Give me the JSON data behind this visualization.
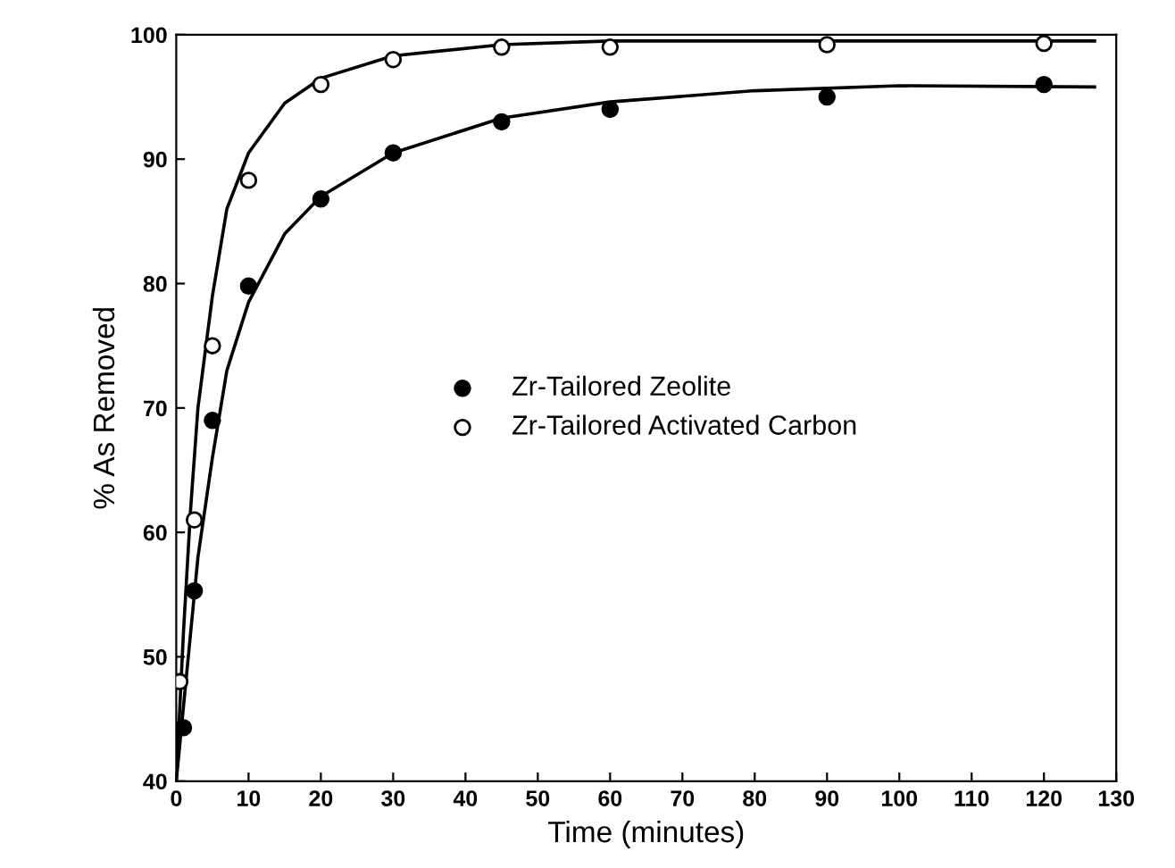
{
  "chart_data": {
    "type": "scatter",
    "xlabel": "Time (minutes)",
    "ylabel": "% As Removed",
    "xlim": [
      0,
      130
    ],
    "ylim": [
      40,
      100
    ],
    "xticks": [
      0,
      10,
      20,
      30,
      40,
      50,
      60,
      70,
      80,
      90,
      100,
      110,
      120,
      130
    ],
    "yticks": [
      40,
      50,
      60,
      70,
      80,
      90,
      100
    ],
    "legend": "center",
    "series": [
      {
        "name": "Zr-Tailored Zeolite",
        "marker": "circle",
        "color": "#000000",
        "x": [
          1,
          2.5,
          5,
          10,
          20,
          30,
          45,
          60,
          90,
          120
        ],
        "values": [
          44.3,
          55.3,
          69,
          79.8,
          86.8,
          90.5,
          93,
          94,
          95,
          96
        ]
      },
      {
        "name": "Zr-Tailored Activated Carbon",
        "marker": "circle",
        "color": "#ffffff",
        "x": [
          0.5,
          2.5,
          5,
          10,
          20,
          30,
          45,
          60,
          90,
          120
        ],
        "values": [
          48,
          61,
          75,
          88.3,
          96,
          98,
          99,
          99,
          99.2,
          99.3
        ]
      },
      {
        "type": "line",
        "marker": "none",
        "color": "#000000",
        "x": [
          0,
          1,
          2,
          3,
          5,
          7,
          10,
          15,
          20,
          30,
          45,
          60,
          80,
          100,
          127
        ],
        "values": [
          40,
          46,
          52,
          58,
          66,
          73,
          78.5,
          84,
          87,
          90.5,
          93.3,
          94.6,
          95.5,
          95.9,
          95.8
        ]
      },
      {
        "type": "line",
        "marker": "none",
        "color": "#000000",
        "x": [
          0,
          1,
          2,
          3,
          5,
          7,
          10,
          15,
          20,
          30,
          45,
          60,
          127
        ],
        "values": [
          40,
          52,
          62,
          70,
          79,
          86,
          90.5,
          94.5,
          96.5,
          98.3,
          99.2,
          99.5,
          99.5
        ]
      }
    ]
  }
}
